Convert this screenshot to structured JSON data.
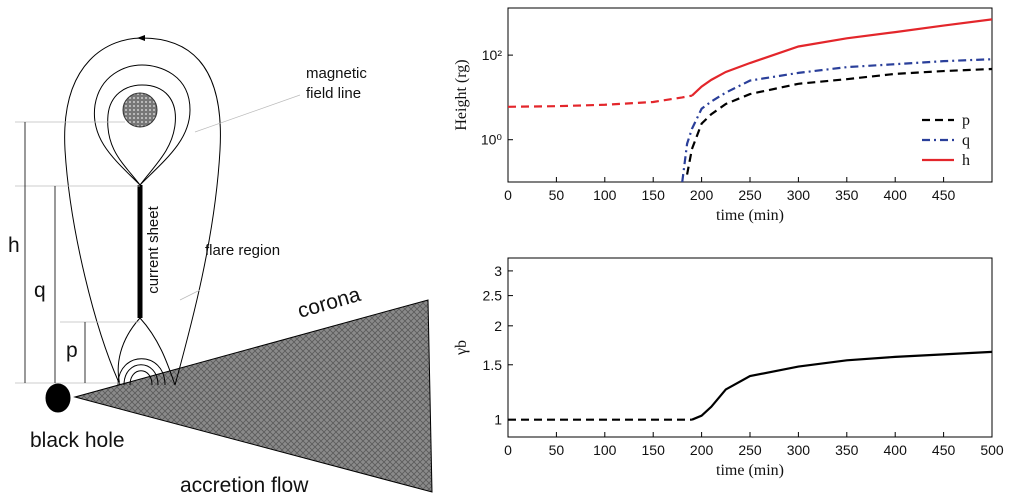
{
  "diagram": {
    "magnetic_label": [
      "magnetic",
      "field line"
    ],
    "current_sheet": "current sheet",
    "flare_region": "flare region",
    "corona": "corona",
    "black_hole": "black hole",
    "accretion_flow": "accretion flow",
    "heights": [
      "h",
      "q",
      "p"
    ]
  },
  "chart_data": [
    {
      "type": "line",
      "ylabel": "Height (rg)",
      "xlabel": "time (min)",
      "yscale": "log",
      "x": [
        0,
        50,
        100,
        150,
        180,
        185,
        190,
        200,
        210,
        225,
        250,
        300,
        350,
        400,
        450,
        500
      ],
      "series": [
        {
          "name": "p",
          "color": "#000000",
          "style": "dashed",
          "values": [
            null,
            null,
            null,
            null,
            null,
            0.15,
            0.6,
            2.4,
            4,
            7,
            12,
            21,
            27,
            36,
            42,
            47
          ]
        },
        {
          "name": "q",
          "color": "#2a3f9a",
          "style": "dashdot",
          "values": [
            null,
            null,
            null,
            null,
            0.1,
            0.8,
            1.8,
            5.4,
            8,
            13,
            25,
            38,
            52,
            61,
            72,
            80
          ]
        },
        {
          "name": "h",
          "color": "#e3262b",
          "style": "solid",
          "dashed_before": 190,
          "values": [
            6,
            6.2,
            6.7,
            7.8,
            10,
            10.5,
            11,
            18,
            26,
            40,
            65,
            160,
            250,
            350,
            500,
            700
          ]
        }
      ],
      "xlim": [
        0,
        500
      ],
      "xticks": [
        0,
        50,
        100,
        150,
        200,
        250,
        300,
        350,
        400,
        450
      ],
      "ylim": [
        0.1,
        1300
      ],
      "yticks": [
        {
          "value": 1,
          "label": "10⁰"
        },
        {
          "value": 100,
          "label": "10²"
        }
      ],
      "legend": "lower right"
    },
    {
      "type": "line",
      "ylabel": "γb",
      "xlabel": "time (min)",
      "yscale": "log",
      "x": [
        0,
        50,
        100,
        150,
        180,
        190,
        200,
        210,
        225,
        250,
        300,
        350,
        400,
        450,
        500
      ],
      "series": [
        {
          "color": "#000000",
          "style": "solid",
          "dashed_before": 190,
          "values": [
            1,
            1,
            1,
            1,
            1,
            1,
            1.03,
            1.1,
            1.25,
            1.38,
            1.48,
            1.55,
            1.59,
            1.62,
            1.65
          ]
        }
      ],
      "xlim": [
        0,
        500
      ],
      "xticks": [
        0,
        50,
        100,
        150,
        200,
        250,
        300,
        350,
        400,
        450,
        500
      ],
      "ylim": [
        0.88,
        3.3
      ],
      "yticks": [
        1,
        1.5,
        2,
        2.5,
        3
      ]
    }
  ]
}
